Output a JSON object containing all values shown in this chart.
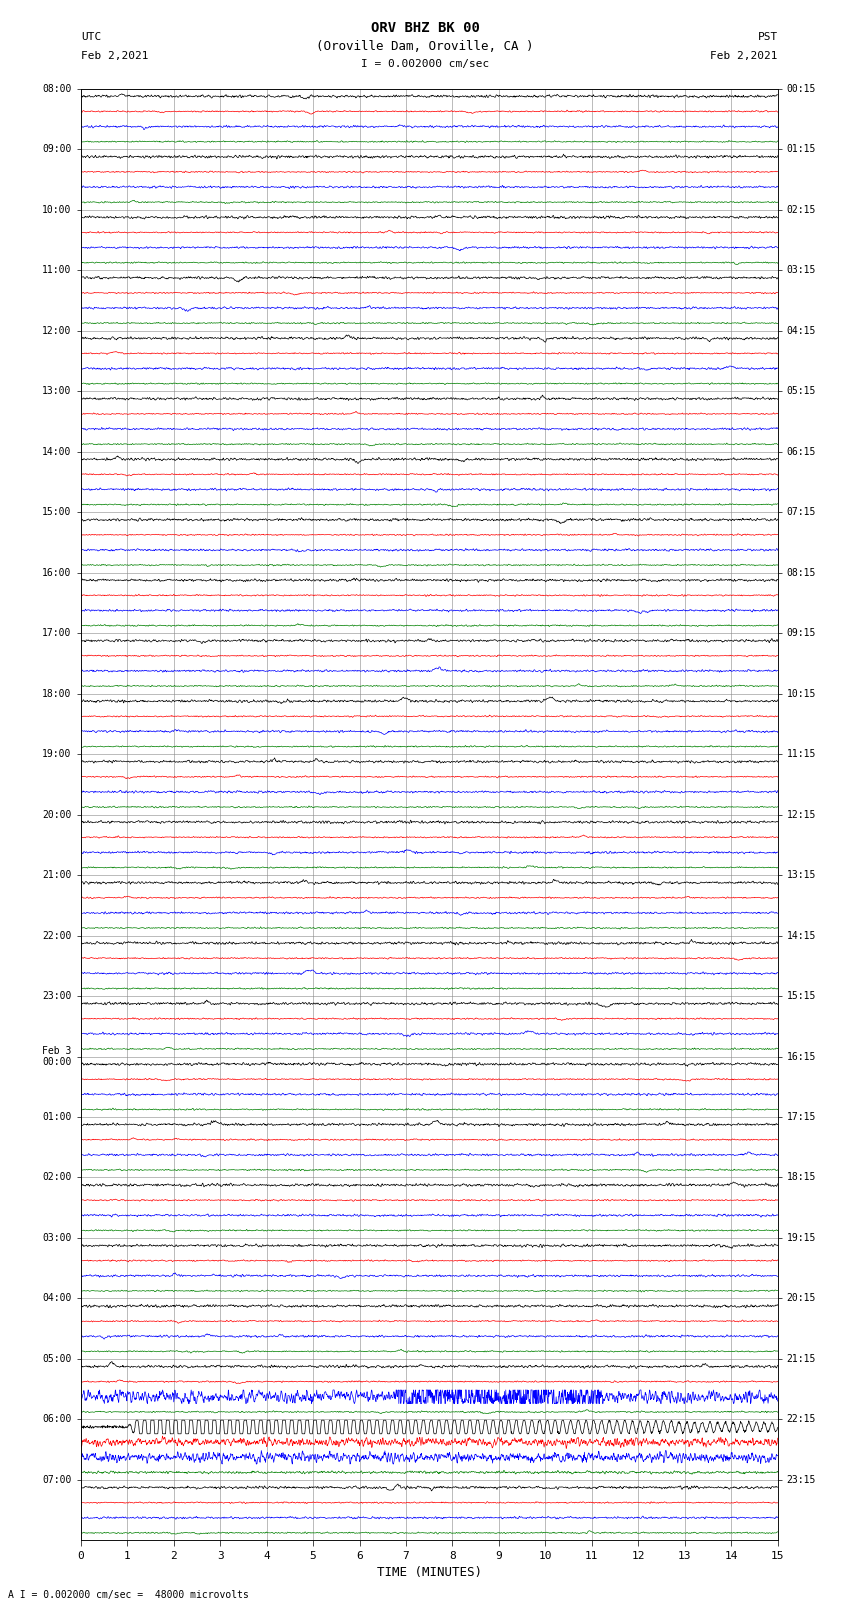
{
  "title_line1": "ORV BHZ BK 00",
  "title_line2": "(Oroville Dam, Oroville, CA )",
  "scale_text": "I = 0.002000 cm/sec",
  "bottom_label": "A I = 0.002000 cm/sec =  48000 microvolts",
  "xlabel": "TIME (MINUTES)",
  "left_header": "UTC",
  "left_date": "Feb 2,2021",
  "right_header": "PST",
  "right_date": "Feb 2,2021",
  "xmin": 0,
  "xmax": 15,
  "xticks": [
    0,
    1,
    2,
    3,
    4,
    5,
    6,
    7,
    8,
    9,
    10,
    11,
    12,
    13,
    14,
    15
  ],
  "trace_colors": [
    "black",
    "red",
    "blue",
    "green"
  ],
  "utc_labels": [
    "08:00",
    "09:00",
    "10:00",
    "11:00",
    "12:00",
    "13:00",
    "14:00",
    "15:00",
    "16:00",
    "17:00",
    "18:00",
    "19:00",
    "20:00",
    "21:00",
    "22:00",
    "23:00",
    "Feb 3\n00:00",
    "01:00",
    "02:00",
    "03:00",
    "04:00",
    "05:00",
    "06:00",
    "07:00"
  ],
  "pst_labels": [
    "00:15",
    "01:15",
    "02:15",
    "03:15",
    "04:15",
    "05:15",
    "06:15",
    "07:15",
    "08:15",
    "09:15",
    "10:15",
    "11:15",
    "12:15",
    "13:15",
    "14:15",
    "15:15",
    "16:15",
    "17:15",
    "18:15",
    "19:15",
    "20:15",
    "21:15",
    "22:15",
    "23:15"
  ],
  "n_hours": 24,
  "traces_per_hour": 4,
  "bg_color": "white",
  "fig_width": 8.5,
  "fig_height": 16.13,
  "dpi": 100,
  "noise_scale": 0.018,
  "green_scale": 0.008,
  "red_scale": 0.008,
  "blue_scale": 0.012,
  "black_scale": 0.015,
  "eq_hour": 22,
  "eq_black_scale": 0.38,
  "eq_blue_scale": 0.06,
  "eq_red_scale": 0.05,
  "eq_green_scale": 0.015,
  "pre_eq_blue_hour": 21,
  "pre_eq_blue_scale": 0.08
}
